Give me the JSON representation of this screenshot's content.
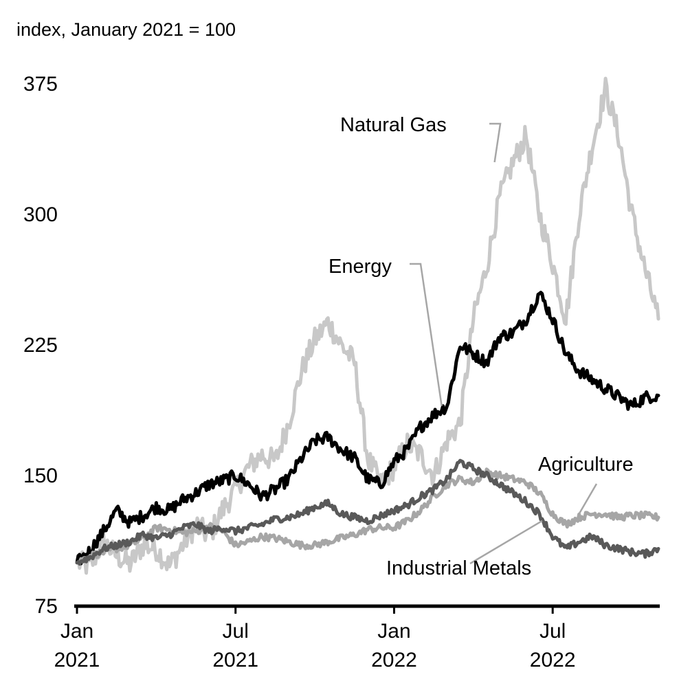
{
  "chart_data": {
    "type": "line",
    "title": "",
    "ylabel": "index, January 2021 = 100",
    "xlabel": "",
    "ylim": [
      75,
      375
    ],
    "yticks": [
      75,
      150,
      225,
      300,
      375
    ],
    "xlim": [
      0,
      22
    ],
    "xticks": [
      {
        "pos": 0,
        "line1": "Jan",
        "line2": "2021"
      },
      {
        "pos": 6,
        "line1": "Jul",
        "line2": "2021"
      },
      {
        "pos": 12,
        "line1": "Jan",
        "line2": "2022"
      },
      {
        "pos": 18,
        "line1": "Jul",
        "line2": "2022"
      }
    ],
    "grid": false,
    "series": [
      {
        "name": "Natural Gas",
        "color": "#c8c8c8",
        "points": [
          [
            0,
            100
          ],
          [
            0.5,
            98
          ],
          [
            1,
            112
          ],
          [
            1.5,
            104
          ],
          [
            2,
            99
          ],
          [
            2.5,
            110
          ],
          [
            3,
            108
          ],
          [
            3.5,
            98
          ],
          [
            4,
            110
          ],
          [
            4.5,
            122
          ],
          [
            5,
            115
          ],
          [
            5.5,
            130
          ],
          [
            6,
            142
          ],
          [
            6.5,
            155
          ],
          [
            7,
            162
          ],
          [
            7.5,
            158
          ],
          [
            8,
            180
          ],
          [
            8.5,
            210
          ],
          [
            9,
            228
          ],
          [
            9.5,
            238
          ],
          [
            10,
            225
          ],
          [
            10.5,
            215
          ],
          [
            11,
            160
          ],
          [
            11.5,
            145
          ],
          [
            12,
            155
          ],
          [
            12.5,
            168
          ],
          [
            13,
            162
          ],
          [
            13.5,
            150
          ],
          [
            14,
            170
          ],
          [
            14.5,
            180
          ],
          [
            15,
            240
          ],
          [
            15.5,
            270
          ],
          [
            16,
            310
          ],
          [
            16.5,
            330
          ],
          [
            17,
            345
          ],
          [
            17.5,
            300
          ],
          [
            18,
            272
          ],
          [
            18.5,
            240
          ],
          [
            19,
            300
          ],
          [
            19.5,
            340
          ],
          [
            20,
            372
          ],
          [
            20.5,
            345
          ],
          [
            21,
            300
          ],
          [
            21.5,
            268
          ],
          [
            22,
            240
          ]
        ]
      },
      {
        "name": "Energy",
        "color": "#000000",
        "points": [
          [
            0,
            100
          ],
          [
            0.5,
            107
          ],
          [
            1,
            118
          ],
          [
            1.5,
            130
          ],
          [
            2,
            123
          ],
          [
            2.5,
            127
          ],
          [
            3,
            132
          ],
          [
            3.5,
            130
          ],
          [
            4,
            136
          ],
          [
            4.5,
            140
          ],
          [
            5,
            145
          ],
          [
            5.5,
            147
          ],
          [
            6,
            150
          ],
          [
            6.5,
            145
          ],
          [
            7,
            138
          ],
          [
            7.5,
            142
          ],
          [
            8,
            148
          ],
          [
            8.5,
            160
          ],
          [
            9,
            170
          ],
          [
            9.5,
            172
          ],
          [
            10,
            165
          ],
          [
            10.5,
            160
          ],
          [
            11,
            148
          ],
          [
            11.5,
            145
          ],
          [
            12,
            158
          ],
          [
            12.5,
            165
          ],
          [
            13,
            178
          ],
          [
            13.5,
            185
          ],
          [
            14,
            190
          ],
          [
            14.5,
            225
          ],
          [
            15,
            220
          ],
          [
            15.5,
            215
          ],
          [
            16,
            230
          ],
          [
            16.5,
            232
          ],
          [
            17,
            240
          ],
          [
            17.5,
            255
          ],
          [
            18,
            240
          ],
          [
            18.5,
            220
          ],
          [
            19,
            210
          ],
          [
            19.5,
            205
          ],
          [
            20,
            200
          ],
          [
            20.5,
            195
          ],
          [
            21,
            190
          ],
          [
            21.5,
            195
          ],
          [
            22,
            196
          ]
        ]
      },
      {
        "name": "Agriculture",
        "color": "#a6a6a6",
        "points": [
          [
            0,
            100
          ],
          [
            0.5,
            104
          ],
          [
            1,
            106
          ],
          [
            1.5,
            108
          ],
          [
            2,
            110
          ],
          [
            2.5,
            114
          ],
          [
            3,
            120
          ],
          [
            3.5,
            119
          ],
          [
            4,
            117
          ],
          [
            4.5,
            118
          ],
          [
            5,
            121
          ],
          [
            5.5,
            118
          ],
          [
            6,
            110
          ],
          [
            6.5,
            112
          ],
          [
            7,
            115
          ],
          [
            7.5,
            114
          ],
          [
            8,
            112
          ],
          [
            8.5,
            110
          ],
          [
            9,
            110
          ],
          [
            9.5,
            112
          ],
          [
            10,
            114
          ],
          [
            10.5,
            116
          ],
          [
            11,
            119
          ],
          [
            11.5,
            120
          ],
          [
            12,
            120
          ],
          [
            12.5,
            124
          ],
          [
            13,
            130
          ],
          [
            13.5,
            138
          ],
          [
            14,
            145
          ],
          [
            14.5,
            148
          ],
          [
            15,
            146
          ],
          [
            15.5,
            152
          ],
          [
            16,
            150
          ],
          [
            16.5,
            148
          ],
          [
            17,
            146
          ],
          [
            17.5,
            140
          ],
          [
            18,
            128
          ],
          [
            18.5,
            122
          ],
          [
            19,
            126
          ],
          [
            19.5,
            128
          ],
          [
            20,
            128
          ],
          [
            20.5,
            126
          ],
          [
            21,
            127
          ],
          [
            21.5,
            127
          ],
          [
            22,
            126
          ]
        ]
      },
      {
        "name": "Industrial Metals",
        "color": "#595959",
        "points": [
          [
            0,
            100
          ],
          [
            0.5,
            103
          ],
          [
            1,
            108
          ],
          [
            1.5,
            110
          ],
          [
            2,
            112
          ],
          [
            2.5,
            116
          ],
          [
            3,
            114
          ],
          [
            3.5,
            116
          ],
          [
            4,
            120
          ],
          [
            4.5,
            122
          ],
          [
            5,
            118
          ],
          [
            5.5,
            120
          ],
          [
            6,
            118
          ],
          [
            6.5,
            120
          ],
          [
            7,
            122
          ],
          [
            7.5,
            125
          ],
          [
            8,
            126
          ],
          [
            8.5,
            128
          ],
          [
            9,
            132
          ],
          [
            9.5,
            134
          ],
          [
            10,
            128
          ],
          [
            10.5,
            126
          ],
          [
            11,
            124
          ],
          [
            11.5,
            127
          ],
          [
            12,
            130
          ],
          [
            12.5,
            133
          ],
          [
            13,
            138
          ],
          [
            13.5,
            142
          ],
          [
            14,
            148
          ],
          [
            14.5,
            158
          ],
          [
            15,
            154
          ],
          [
            15.5,
            150
          ],
          [
            16,
            145
          ],
          [
            16.5,
            140
          ],
          [
            17,
            135
          ],
          [
            17.5,
            128
          ],
          [
            18,
            115
          ],
          [
            18.5,
            108
          ],
          [
            19,
            112
          ],
          [
            19.5,
            115
          ],
          [
            20,
            110
          ],
          [
            20.5,
            108
          ],
          [
            21,
            106
          ],
          [
            21.5,
            105
          ],
          [
            22,
            108
          ]
        ]
      }
    ],
    "annotations": [
      {
        "text": "Natural Gas",
        "series": "Natural Gas",
        "anchor": [
          15.8,
          330
        ]
      },
      {
        "text": "Energy",
        "series": "Energy",
        "anchor": [
          13.8,
          190
        ]
      },
      {
        "text": "Agriculture",
        "series": "Agriculture",
        "anchor": [
          19,
          128
        ]
      },
      {
        "text": "Industrial Metals",
        "series": "Industrial Metals",
        "anchor": [
          17.6,
          124
        ]
      }
    ]
  }
}
